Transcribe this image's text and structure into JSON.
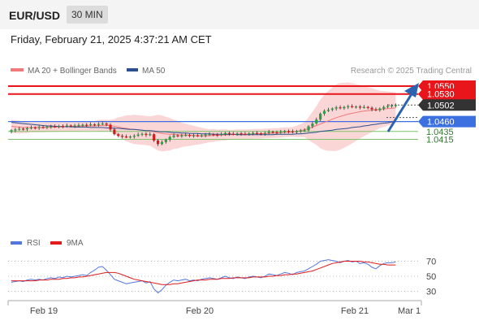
{
  "header": {
    "pair": "EUR/USD",
    "timeframe": "30 MIN"
  },
  "datetime": "Friday, February 21, 2025 4:37:21 AM CET",
  "credit": "Research © 2025 Trading Central",
  "colors": {
    "resistance": "#e8151b",
    "support": "#3c6fe0",
    "pivot": "#7cc46a",
    "candle_up": "#2f9c46",
    "candle_down": "#d11c1c",
    "bands": "#f9c8c8",
    "ma20": "#f07a7a",
    "ma50": "#2c4f8f",
    "rsi": "#5577dd",
    "rsi_ma": "#e11a1a",
    "current_price_box": "#333333",
    "arrow": "#2a64b0"
  },
  "chart_data": [
    {
      "type": "candlestick",
      "legend": [
        {
          "name": "MA 20 + Bollinger Bands",
          "color": "#f07a7a"
        },
        {
          "name": "MA 50",
          "color": "#2c4f8f"
        }
      ],
      "x_ticks": [
        "Feb 19",
        "Feb 20",
        "Feb 21",
        "Mar 1"
      ],
      "ylim": [
        1.0395,
        1.0565
      ],
      "levels": [
        {
          "label": "1.0550",
          "value": 1.055,
          "kind": "resistance"
        },
        {
          "label": "1.0530",
          "value": 1.053,
          "kind": "resistance"
        },
        {
          "label": "1.0502",
          "value": 1.0502,
          "kind": "current"
        },
        {
          "label": "1.0460",
          "value": 1.046,
          "kind": "support"
        },
        {
          "label": "1.0435",
          "value": 1.0435,
          "kind": "pivot"
        },
        {
          "label": "1.0415",
          "value": 1.0415,
          "kind": "pivot"
        }
      ],
      "close": [
        1.0438,
        1.044,
        1.0442,
        1.0441,
        1.0443,
        1.0445,
        1.0444,
        1.0446,
        1.0445,
        1.0447,
        1.0448,
        1.0447,
        1.0449,
        1.0448,
        1.045,
        1.0449,
        1.045,
        1.0451,
        1.0452,
        1.0451,
        1.0453,
        1.0452,
        1.0454,
        1.0455,
        1.0452,
        1.044,
        1.0428,
        1.0424,
        1.0422,
        1.0421,
        1.0422,
        1.0424,
        1.0427,
        1.0429,
        1.0426,
        1.0428,
        1.0412,
        1.0403,
        1.0408,
        1.0414,
        1.0421,
        1.0425,
        1.0424,
        1.0425,
        1.0426,
        1.0424,
        1.0425,
        1.0424,
        1.0425,
        1.0427,
        1.0428,
        1.0427,
        1.0426,
        1.0428,
        1.0431,
        1.0429,
        1.0428,
        1.043,
        1.0429,
        1.0428,
        1.043,
        1.0431,
        1.043,
        1.0429,
        1.0431,
        1.0434,
        1.0433,
        1.0432,
        1.0434,
        1.0436,
        1.0435,
        1.0433,
        1.0436,
        1.0437,
        1.0438,
        1.0448,
        1.0455,
        1.0465,
        1.048,
        1.0487,
        1.049,
        1.0493,
        1.0496,
        1.0494,
        1.0497,
        1.0499,
        1.0497,
        1.0498,
        1.0496,
        1.0497,
        1.0495,
        1.0491,
        1.0489,
        1.0493,
        1.0497,
        1.0499,
        1.0501,
        1.0502
      ],
      "ma20": [
        1.0448,
        1.0447,
        1.0446,
        1.0445,
        1.0445,
        1.0445,
        1.0445,
        1.0445,
        1.0445,
        1.0446,
        1.0446,
        1.0446,
        1.0446,
        1.0447,
        1.0447,
        1.0448,
        1.0448,
        1.0448,
        1.0449,
        1.0449,
        1.0449,
        1.0449,
        1.045,
        1.045,
        1.045,
        1.045,
        1.0448,
        1.0446,
        1.0444,
        1.0443,
        1.0441,
        1.044,
        1.0439,
        1.0438,
        1.0437,
        1.0436,
        1.0434,
        1.0432,
        1.043,
        1.0429,
        1.0428,
        1.0428,
        1.0427,
        1.0426,
        1.0426,
        1.0425,
        1.0425,
        1.0424,
        1.0424,
        1.0424,
        1.0424,
        1.0425,
        1.0425,
        1.0426,
        1.0426,
        1.0427,
        1.0427,
        1.0428,
        1.0428,
        1.0428,
        1.0428,
        1.0429,
        1.0429,
        1.0429,
        1.043,
        1.043,
        1.0431,
        1.0431,
        1.0432,
        1.0433,
        1.0433,
        1.0434,
        1.0435,
        1.0437,
        1.0439,
        1.0442,
        1.0446,
        1.045,
        1.0454,
        1.0458,
        1.0462,
        1.0466,
        1.047,
        1.0473,
        1.0476,
        1.0479,
        1.0481,
        1.0483,
        1.0485,
        1.0487,
        1.0488,
        1.0489,
        1.049,
        1.0491,
        1.0492,
        1.0493,
        1.0494,
        1.0495
      ],
      "band_half_width": [
        8,
        8,
        8,
        7,
        7,
        6,
        6,
        6,
        6,
        6,
        6,
        6,
        6,
        6,
        6,
        6,
        6,
        6,
        6,
        6,
        6,
        6,
        7,
        7,
        7,
        7,
        9,
        12,
        14,
        16,
        17,
        18,
        18,
        18,
        18,
        18,
        20,
        22,
        22,
        21,
        20,
        18,
        17,
        15,
        14,
        13,
        12,
        11,
        10,
        9,
        8,
        8,
        7,
        7,
        7,
        6,
        6,
        6,
        6,
        6,
        6,
        6,
        6,
        6,
        6,
        6,
        6,
        6,
        6,
        6,
        6,
        6,
        7,
        8,
        9,
        14,
        19,
        24,
        30,
        34,
        37,
        39,
        41,
        41,
        40,
        39,
        37,
        35,
        33,
        31,
        29,
        27,
        25,
        23,
        22,
        21,
        20,
        19
      ],
      "ma50": [
        1.0458,
        1.0457,
        1.0456,
        1.0455,
        1.0454,
        1.0453,
        1.0452,
        1.0451,
        1.045,
        1.0449,
        1.0449,
        1.0448,
        1.0448,
        1.0447,
        1.0447,
        1.0447,
        1.0446,
        1.0446,
        1.0446,
        1.0446,
        1.0445,
        1.0445,
        1.0445,
        1.0445,
        1.0444,
        1.0444,
        1.0443,
        1.0443,
        1.0442,
        1.0441,
        1.044,
        1.044,
        1.0439,
        1.0438,
        1.0437,
        1.0437,
        1.0436,
        1.0435,
        1.0434,
        1.0434,
        1.0433,
        1.0432,
        1.0432,
        1.0431,
        1.0431,
        1.043,
        1.043,
        1.043,
        1.0429,
        1.0429,
        1.0429,
        1.0428,
        1.0428,
        1.0428,
        1.0428,
        1.0428,
        1.0428,
        1.0427,
        1.0427,
        1.0427,
        1.0427,
        1.0427,
        1.0427,
        1.0427,
        1.0427,
        1.0427,
        1.0427,
        1.0428,
        1.0428,
        1.0428,
        1.0428,
        1.0428,
        1.0429,
        1.0429,
        1.043,
        1.0431,
        1.0432,
        1.0433,
        1.0435,
        1.0436,
        1.0437,
        1.0438,
        1.044,
        1.0441,
        1.0442,
        1.0443,
        1.0445,
        1.0446,
        1.0447,
        1.0449,
        1.045,
        1.0452,
        1.0453,
        1.0455,
        1.0456,
        1.0457,
        1.0459,
        1.046
      ]
    },
    {
      "type": "line",
      "legend": [
        {
          "name": "RSI",
          "color": "#5577dd"
        },
        {
          "name": "9MA",
          "color": "#e11a1a"
        }
      ],
      "y_ticks": [
        "70",
        "50",
        "30"
      ],
      "ylim": [
        20,
        80
      ],
      "rsi": [
        42,
        43,
        44,
        43,
        45,
        46,
        45,
        46,
        45,
        47,
        48,
        47,
        49,
        48,
        50,
        49,
        50,
        51,
        52,
        51,
        55,
        58,
        62,
        63,
        58,
        52,
        46,
        44,
        42,
        40,
        41,
        42,
        43,
        44,
        41,
        43,
        33,
        28,
        32,
        38,
        42,
        45,
        44,
        45,
        46,
        44,
        45,
        44,
        46,
        47,
        48,
        47,
        46,
        48,
        50,
        48,
        47,
        49,
        48,
        47,
        49,
        50,
        49,
        48,
        50,
        53,
        52,
        51,
        53,
        55,
        54,
        52,
        55,
        56,
        57,
        60,
        63,
        66,
        70,
        71,
        72,
        71,
        70,
        68,
        70,
        71,
        69,
        70,
        67,
        68,
        66,
        62,
        60,
        64,
        67,
        68,
        68,
        69
      ],
      "rsi_ma": [
        44,
        44,
        44,
        44,
        44,
        44,
        44,
        45,
        45,
        45,
        46,
        46,
        46,
        47,
        47,
        48,
        48,
        49,
        49,
        50,
        51,
        52,
        53,
        54,
        55,
        55,
        55,
        54,
        52,
        50,
        48,
        46,
        45,
        44,
        43,
        42,
        41,
        40,
        39,
        39,
        39,
        40,
        40,
        41,
        42,
        43,
        44,
        45,
        45,
        45,
        46,
        46,
        46,
        47,
        47,
        47,
        48,
        48,
        48,
        48,
        48,
        49,
        49,
        49,
        49,
        50,
        50,
        51,
        51,
        52,
        52,
        53,
        53,
        54,
        55,
        56,
        57,
        59,
        61,
        63,
        65,
        67,
        68,
        69,
        70,
        70,
        70,
        70,
        70,
        69,
        69,
        68,
        67,
        66,
        66,
        65,
        65,
        65
      ]
    }
  ]
}
